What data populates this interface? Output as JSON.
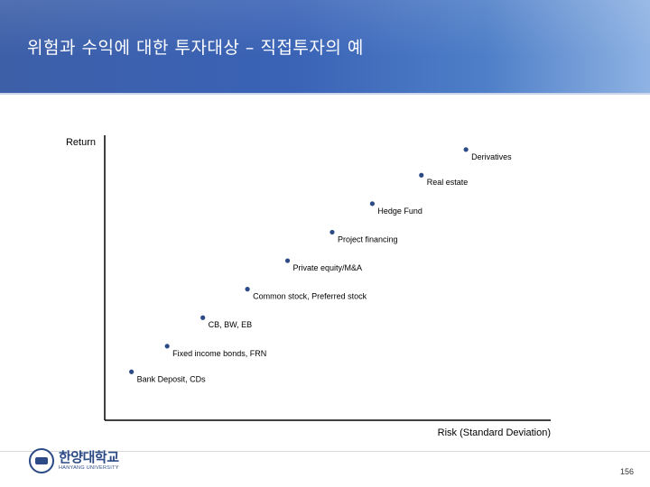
{
  "slide": {
    "title": "위험과 수익에 대한 투자대상 – 직접투자의 예",
    "page_number": "156",
    "logo": {
      "korean": "한양대학교",
      "english": "HANYANG UNIVERSITY"
    }
  },
  "colors": {
    "header_blue": "#3a63b6",
    "point": "#2c4a86",
    "axis": "#000000"
  },
  "chart_data": {
    "type": "scatter",
    "title": "",
    "xlabel": "Risk (Standard Deviation)",
    "ylabel": "Return",
    "xlim": [
      0,
      10
    ],
    "ylim": [
      0,
      10
    ],
    "grid": false,
    "axis_ticks": false,
    "points": [
      {
        "label": "Bank Deposit, CDs",
        "x": 0.6,
        "y": 1.7
      },
      {
        "label": "Fixed income bonds, FRN",
        "x": 1.4,
        "y": 2.6
      },
      {
        "label": "CB, BW, EB",
        "x": 2.2,
        "y": 3.6
      },
      {
        "label": "Common stock, Preferred stock",
        "x": 3.2,
        "y": 4.6
      },
      {
        "label": "Private equity/M&A",
        "x": 4.1,
        "y": 5.6
      },
      {
        "label": "Project financing",
        "x": 5.1,
        "y": 6.6
      },
      {
        "label": "Hedge Fund",
        "x": 6.0,
        "y": 7.6
      },
      {
        "label": "Real estate",
        "x": 7.1,
        "y": 8.6
      },
      {
        "label": "Derivatives",
        "x": 8.1,
        "y": 9.5
      }
    ]
  }
}
